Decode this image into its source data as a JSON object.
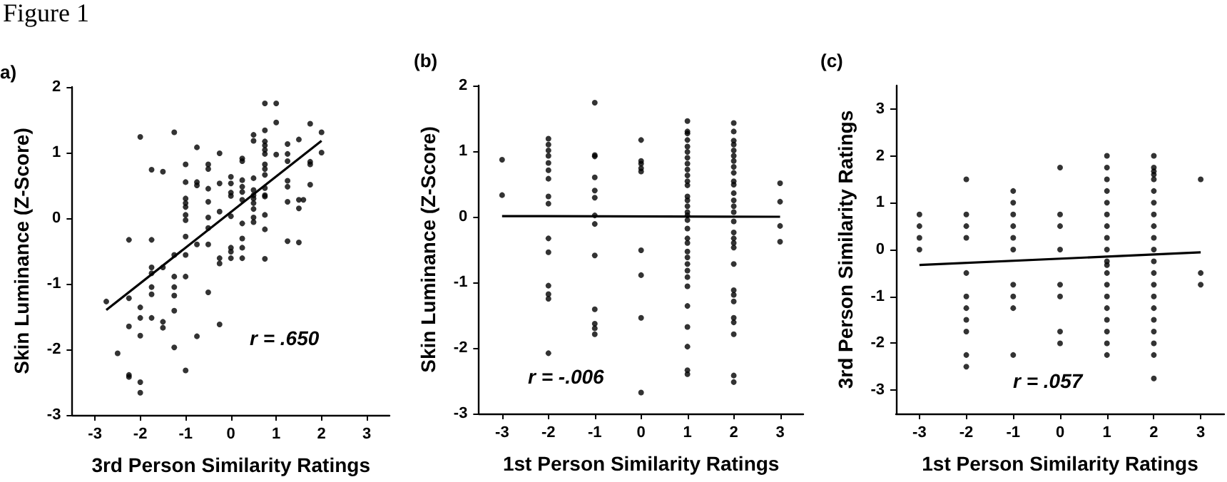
{
  "chart_data": [
    {
      "type": "scatter",
      "title": "a)",
      "xlabel": "3rd Person Similarity Ratings",
      "ylabel": "Skin Luminance (Z-Score)",
      "annotations": [
        "Figure 1",
        "r = .650"
      ],
      "xlim": [
        -3.5,
        3.5
      ],
      "ylim": [
        -3,
        2
      ],
      "xticks": [
        -3,
        -2,
        -1,
        0,
        1,
        2,
        3
      ],
      "yticks": [
        -3,
        -2,
        -1,
        0,
        1,
        2
      ],
      "series": [
        {
          "marker": "circle",
          "color": "#000000",
          "x": [
            -2.75,
            -2.5,
            -2.25,
            -2.25,
            -2.25,
            -2.25,
            -2.25,
            -2,
            -2,
            -2,
            -2,
            -2,
            -2,
            -1.75,
            -1.75,
            -1.75,
            -1.75,
            -1.75,
            -1.75,
            -1.75,
            -1.5,
            -1.5,
            -1.5,
            -1.5,
            -1.25,
            -1.25,
            -1.25,
            -1.25,
            -1.25,
            -1.25,
            -1.25,
            -1,
            -1,
            -1,
            -1,
            -1,
            -1,
            -1,
            -1,
            -1,
            -1,
            -1,
            -0.75,
            -0.75,
            -0.75,
            -0.75,
            -0.75,
            -0.5,
            -0.5,
            -0.5,
            -0.5,
            -0.5,
            -0.5,
            -0.5,
            -0.5,
            -0.25,
            -0.25,
            -0.25,
            -0.25,
            -0.25,
            -0.25,
            0,
            0,
            0,
            0,
            0,
            0,
            0,
            0,
            0.25,
            0.25,
            0.25,
            0.25,
            0.25,
            0.25,
            0.25,
            0.25,
            0.25,
            0.25,
            0.5,
            0.5,
            0.5,
            0.5,
            0.5,
            0.5,
            0.5,
            0.5,
            0.5,
            0.5,
            0.75,
            0.75,
            0.75,
            0.75,
            0.75,
            0.75,
            0.75,
            0.75,
            0.75,
            0.75,
            0.75,
            0.75,
            0.75,
            0.75,
            0.75,
            1,
            1,
            1,
            1.25,
            1.25,
            1.25,
            1.25,
            1.25,
            1.25,
            1.25,
            1.5,
            1.5,
            1.5,
            1.5,
            1.6,
            1.75,
            1.75,
            1.75,
            1.75,
            2,
            2
          ],
          "values": [
            -1.27,
            -2.06,
            -0.33,
            -1.22,
            -1.65,
            -2.39,
            -2.42,
            1.24,
            -1.36,
            -1.52,
            -1.79,
            -2.5,
            -2.66,
            0.74,
            -0.33,
            -0.75,
            -0.84,
            -1.05,
            -1.16,
            -1.52,
            0.71,
            -0.75,
            -1.58,
            -1.67,
            1.31,
            -0.56,
            -0.89,
            -1.05,
            -1.18,
            -1.41,
            -1.97,
            0.82,
            0.55,
            0.3,
            0.23,
            0.17,
            0.05,
            -0.03,
            -0.28,
            -0.56,
            -0.89,
            -2.32,
            1.08,
            0.55,
            0.5,
            -0.4,
            -1.8,
            0.82,
            0.75,
            0.45,
            0.25,
            0.01,
            -0.15,
            -0.4,
            -1.13,
            0.99,
            0.53,
            0.1,
            -0.61,
            -0.69,
            -1.62,
            0.63,
            0.53,
            0.39,
            0.34,
            0.03,
            -0.45,
            -0.51,
            -0.61,
            0.91,
            0.87,
            0.58,
            0.48,
            0.4,
            0.28,
            -0.08,
            -0.31,
            -0.45,
            -0.61,
            1.27,
            1.18,
            0.61,
            0.43,
            0.35,
            0.3,
            0.23,
            0.14,
            0.01,
            -0.06,
            1.75,
            1.34,
            1.17,
            1.11,
            1.04,
            0.98,
            0.82,
            0.75,
            0.66,
            0.46,
            0.35,
            0.33,
            0.05,
            -0.17,
            -0.62,
            1.75,
            1.46,
            0.97,
            1.13,
            0.98,
            0.87,
            0.57,
            0.48,
            0.25,
            -0.35,
            1.2,
            0.28,
            0.15,
            -0.37,
            0.28,
            1.44,
            0.86,
            0.82,
            0.51,
            1.31,
            1.0
          ]
        },
        {
          "type": "line",
          "color": "#000000",
          "x": [
            -2.75,
            2
          ],
          "values": [
            -1.4,
            1.18
          ]
        }
      ]
    },
    {
      "type": "scatter",
      "title": "(b)",
      "xlabel": "1st Person Similarity Ratings",
      "ylabel": "Skin Luminance (Z-Score)",
      "annotations": [
        "r = -.006"
      ],
      "xlim": [
        -3.5,
        3.5
      ],
      "ylim": [
        -3,
        2
      ],
      "xticks": [
        -3,
        -2,
        -1,
        0,
        1,
        2,
        3
      ],
      "yticks": [
        -3,
        -2,
        -1,
        0,
        1,
        2
      ],
      "series": [
        {
          "marker": "circle",
          "color": "#000000",
          "x": [
            -3,
            -3,
            -2,
            -2,
            -2,
            -2,
            -2,
            -2,
            -2,
            -2,
            -2,
            -2,
            -2,
            -2,
            -2,
            -2,
            -2,
            -1,
            -1,
            -1,
            -1,
            -1,
            -1,
            -1,
            -1,
            -1,
            -1,
            -1,
            -1,
            -1,
            0,
            0,
            0,
            0,
            0,
            0,
            0,
            0,
            0,
            1,
            1,
            1,
            1,
            1,
            1,
            1,
            1,
            1,
            1,
            1,
            1,
            1,
            1,
            1,
            1,
            1,
            1,
            1,
            1,
            1,
            1,
            1,
            1,
            1,
            1,
            1,
            1,
            1,
            1,
            1,
            1,
            2,
            2,
            2,
            2,
            2,
            2,
            2,
            2,
            2,
            2,
            2,
            2,
            2,
            2,
            2,
            2,
            2,
            2,
            2,
            2,
            2,
            2,
            2,
            2,
            2,
            2,
            2,
            2,
            2,
            3,
            3,
            3,
            3
          ],
          "values": [
            0.87,
            0.33,
            1.19,
            1.1,
            1.01,
            0.93,
            0.82,
            0.71,
            0.58,
            0.31,
            0.2,
            -0.33,
            -0.54,
            -1.05,
            -1.18,
            -1.25,
            -2.08,
            1.74,
            0.94,
            0.92,
            0.6,
            0.4,
            0.29,
            0.02,
            -0.11,
            -0.59,
            -1.41,
            -1.63,
            -1.7,
            -1.79,
            1.17,
            0.85,
            0.81,
            0.74,
            0.69,
            -0.51,
            -0.89,
            -1.54,
            -2.68,
            1.46,
            1.3,
            1.27,
            1.17,
            1.07,
            0.99,
            0.9,
            0.81,
            0.72,
            0.63,
            0.54,
            0.48,
            0.31,
            0.25,
            0.16,
            0.07,
            0.02,
            -0.05,
            -0.18,
            -0.33,
            -0.4,
            -0.53,
            -0.62,
            -0.72,
            -0.82,
            -0.92,
            -1.06,
            -1.36,
            -1.68,
            -1.98,
            -2.34,
            -2.4,
            1.43,
            1.3,
            1.16,
            1.1,
            1.01,
            0.93,
            0.85,
            0.76,
            0.67,
            0.54,
            0.49,
            0.36,
            0.25,
            0.16,
            0.07,
            -0.07,
            -0.24,
            -0.33,
            -0.4,
            -0.47,
            -0.72,
            -1.12,
            -1.19,
            -1.29,
            -1.54,
            -1.61,
            -1.79,
            -2.42,
            -2.52,
            0.51,
            0.23,
            -0.14,
            -0.38
          ]
        },
        {
          "type": "line",
          "color": "#000000",
          "x": [
            -3,
            3
          ],
          "values": [
            0.01,
            0
          ]
        }
      ]
    },
    {
      "type": "scatter",
      "title": "(c)",
      "xlabel": "1st Person Similarity Ratings",
      "ylabel": "3rd Person Similarity Ratings",
      "annotations": [
        "r = .057"
      ],
      "xlim": [
        -3.5,
        3.5
      ],
      "ylim": [
        -3.5,
        3.5
      ],
      "xticks": [
        -3,
        -2,
        -1,
        0,
        1,
        2,
        3
      ],
      "yticks": [
        -3,
        -2,
        -1,
        0,
        1,
        2,
        3
      ],
      "series": [
        {
          "marker": "circle",
          "color": "#000000",
          "x": [
            -3,
            -3,
            -3,
            -3,
            -2,
            -2,
            -2,
            -2,
            -2,
            -2,
            -2,
            -2,
            -2,
            -2,
            -2,
            -1,
            -1,
            -1,
            -1,
            -1,
            -1,
            -1,
            -1,
            -1,
            -1,
            0,
            0,
            0,
            0,
            0,
            0,
            0,
            0,
            1,
            1,
            1,
            1,
            1,
            1,
            1,
            1,
            1,
            1,
            1,
            1,
            1,
            1,
            1,
            1,
            1,
            1,
            1,
            2,
            2,
            2,
            2,
            2,
            2,
            2,
            2,
            2,
            2,
            2,
            2,
            2,
            2,
            2,
            2,
            2,
            2,
            2,
            2,
            2,
            3,
            3,
            3
          ],
          "values": [
            0.75,
            0.5,
            0.25,
            0,
            1.5,
            0.75,
            0.5,
            0.25,
            -0.5,
            -1,
            -1.25,
            -1.5,
            -1.75,
            -2.25,
            -2.5,
            1.25,
            1,
            0.75,
            0.5,
            0.25,
            0,
            -0.75,
            -1,
            -1.25,
            -2.25,
            1.75,
            0.75,
            0.5,
            0,
            -0.75,
            -1,
            -1.75,
            -2,
            2,
            1.75,
            1.5,
            1.25,
            1,
            0.75,
            0.5,
            0.25,
            0,
            -0.25,
            -0.33,
            -0.5,
            -0.75,
            -1,
            -1.25,
            -1.5,
            -1.75,
            -2,
            -2.25,
            2,
            1.75,
            1.67,
            1.6,
            1.5,
            1.25,
            1,
            0.75,
            0.5,
            0.25,
            0,
            -0.25,
            -0.5,
            -0.75,
            -1,
            -1.25,
            -1.5,
            -1.75,
            -2,
            -2.25,
            -2.75,
            1.5,
            -0.5,
            -0.75
          ]
        },
        {
          "type": "line",
          "color": "#000000",
          "x": [
            -3,
            3
          ],
          "values": [
            -0.33,
            -0.06
          ]
        }
      ]
    }
  ]
}
